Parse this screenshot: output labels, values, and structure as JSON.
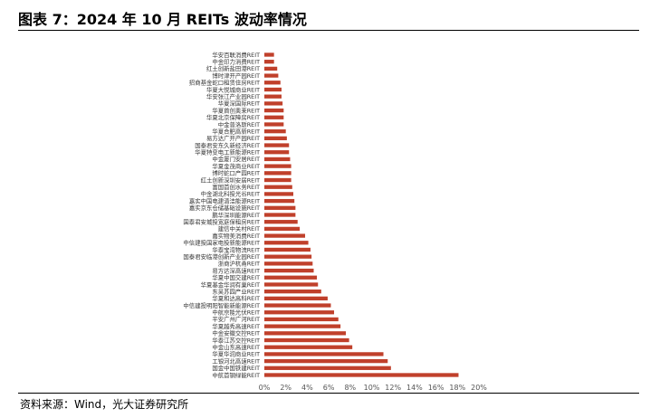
{
  "figure": {
    "title": "图表 7：2024 年 10 月 REITs 波动率情况",
    "source": "资料来源：Wind，光大证券研究所"
  },
  "chart_data": {
    "type": "bar",
    "orientation": "horizontal",
    "title": "",
    "xlabel": "",
    "ylabel": "",
    "xlim": [
      0,
      20
    ],
    "x_ticks": [
      "0%",
      "2%",
      "4%",
      "6%",
      "8%",
      "10%",
      "12%",
      "14%",
      "16%",
      "18%",
      "20%"
    ],
    "grid": false,
    "legend": "none",
    "bar_color": "#c0402b",
    "categories": [
      "华安百联消费REIT",
      "中金印力消费REIT",
      "红土创新盐田港REIT",
      "博时津开产园REIT",
      "招商基金蛇口租赁住房REIT",
      "华夏大悦城商业REIT",
      "华安张江产业园REIT",
      "华夏深国际REIT",
      "华夏首创奥莱REIT",
      "华夏北京保障房REIT",
      "中金普洛斯REIT",
      "华夏合肥高新REIT",
      "易方达广开产园REIT",
      "国泰君安东久新经济REIT",
      "华夏特变电工新能源REIT",
      "中金厦门安居REIT",
      "华夏金茂商业REIT",
      "博时蛇口产园REIT",
      "红土创新深圳安居REIT",
      "富国首创水务REIT",
      "中金湖北科投光谷REIT",
      "嘉实中国电建清洁能源REIT",
      "嘉实京东仓储基础设施REIT",
      "鹏华深圳能源REIT",
      "国泰君安城投宽庭保租房REIT",
      "建信中关村REIT",
      "嘉实物美消费REIT",
      "中信建投国家电投新能源REIT",
      "华泰宝湾物流REIT",
      "国泰君安临港创新产业园REIT",
      "浙商沪杭甬REIT",
      "易方达深高速REIT",
      "华夏中国交建REIT",
      "华夏基金华润有巢REIT",
      "东吴苏园产业REIT",
      "华夏和达高科REIT",
      "中信建投明阳智能新能源REIT",
      "中航京能光伏REIT",
      "平安广州广河REIT",
      "华夏越秀高速REIT",
      "中金安徽交控REIT",
      "华泰江苏交控REIT",
      "中金山东高速REIT",
      "华夏华润商业REIT",
      "工银河北高速REIT",
      "国金中国铁建REIT",
      "中航首钢绿能REIT"
    ],
    "values": [
      0.9,
      0.9,
      1.2,
      1.3,
      1.5,
      1.6,
      1.6,
      1.7,
      1.8,
      1.8,
      1.8,
      2.0,
      2.1,
      2.3,
      2.3,
      2.4,
      2.5,
      2.5,
      2.5,
      2.6,
      2.7,
      2.8,
      2.9,
      2.9,
      3.1,
      3.3,
      3.8,
      4.1,
      4.3,
      4.4,
      4.5,
      4.6,
      4.9,
      5.0,
      5.3,
      5.9,
      6.2,
      6.5,
      6.9,
      7.1,
      7.6,
      7.9,
      8.2,
      11.1,
      11.5,
      11.8,
      18.1
    ]
  }
}
